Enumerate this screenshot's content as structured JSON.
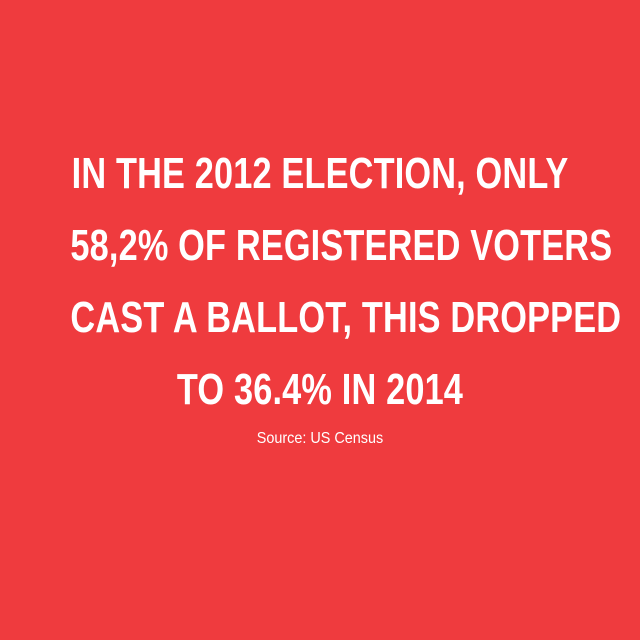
{
  "card": {
    "background_color": "#ef3b3e",
    "text_color": "#ffffff"
  },
  "headline": {
    "lines": [
      "IN THE 2012 ELECTION, ONLY",
      "58,2% OF REGISTERED VOTERS",
      "CAST A BALLOT, THIS DROPPED",
      "TO 36.4% IN 2014"
    ]
  },
  "source": {
    "label": "Source: US Census"
  }
}
